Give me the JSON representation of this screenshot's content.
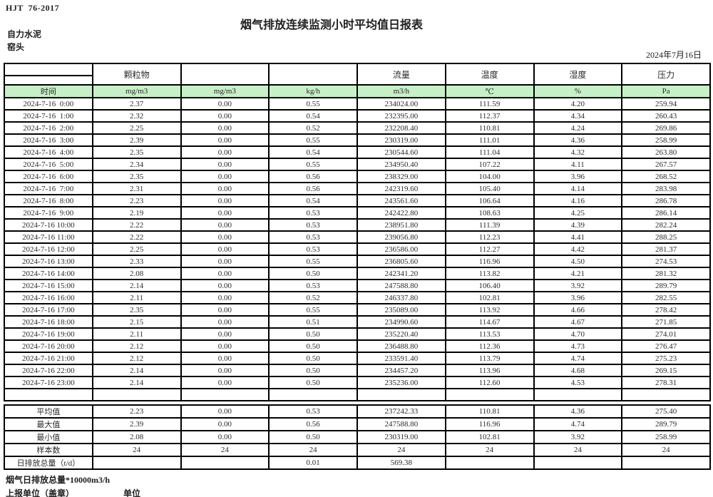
{
  "page": {
    "doc_code": "HJT  76-2017",
    "title": "烟气排放连续监测小时平均值日报表",
    "company": "自力水泥",
    "station": "窑头",
    "date": "2024年7月16日"
  },
  "colors": {
    "header_green": "#c8f0c8",
    "border": "#000000"
  },
  "table": {
    "group_headers": [
      "",
      "颗粒物",
      "",
      "",
      "流量",
      "温度",
      "湿度",
      "压力"
    ],
    "unit_row": [
      "时间",
      "mg/m3",
      "mg/m3",
      "kg/h",
      "m3/h",
      "℃",
      "%",
      "Pa"
    ],
    "rows": [
      [
        "2024-7-16  0:00",
        "2.37",
        "0.00",
        "0.55",
        "234024.00",
        "111.59",
        "4.20",
        "259.94"
      ],
      [
        "2024-7-16  1:00",
        "2.32",
        "0.00",
        "0.54",
        "232395.00",
        "112.37",
        "4.34",
        "260.43"
      ],
      [
        "2024-7-16  2:00",
        "2.25",
        "0.00",
        "0.52",
        "232208.40",
        "110.81",
        "4.24",
        "269.86"
      ],
      [
        "2024-7-16  3:00",
        "2.39",
        "0.00",
        "0.55",
        "230319.00",
        "111.01",
        "4.36",
        "258.99"
      ],
      [
        "2024-7-16  4:00",
        "2.35",
        "0.00",
        "0.54",
        "230544.60",
        "111.04",
        "4.32",
        "263.80"
      ],
      [
        "2024-7-16  5:00",
        "2.34",
        "0.00",
        "0.55",
        "234950.40",
        "107.22",
        "4.11",
        "267.57"
      ],
      [
        "2024-7-16  6:00",
        "2.35",
        "0.00",
        "0.56",
        "238329.00",
        "104.00",
        "3.96",
        "268.52"
      ],
      [
        "2024-7-16  7:00",
        "2.31",
        "0.00",
        "0.56",
        "242319.60",
        "105.40",
        "4.14",
        "283.98"
      ],
      [
        "2024-7-16  8:00",
        "2.23",
        "0.00",
        "0.54",
        "243561.60",
        "106.64",
        "4.16",
        "286.78"
      ],
      [
        "2024-7-16  9:00",
        "2.19",
        "0.00",
        "0.53",
        "242422.80",
        "108.63",
        "4.25",
        "286.14"
      ],
      [
        "2024-7-16 10:00",
        "2.22",
        "0.00",
        "0.53",
        "238951.80",
        "111.39",
        "4.39",
        "282.24"
      ],
      [
        "2024-7-16 11:00",
        "2.22",
        "0.00",
        "0.53",
        "239056.80",
        "112.23",
        "4.41",
        "288.25"
      ],
      [
        "2024-7-16 12:00",
        "2.25",
        "0.00",
        "0.53",
        "236586.00",
        "112.27",
        "4.42",
        "281.37"
      ],
      [
        "2024-7-16 13:00",
        "2.33",
        "0.00",
        "0.55",
        "236805.60",
        "116.96",
        "4.50",
        "274.53"
      ],
      [
        "2024-7-16 14:00",
        "2.08",
        "0.00",
        "0.50",
        "242341.20",
        "113.82",
        "4.21",
        "281.32"
      ],
      [
        "2024-7-16 15:00",
        "2.14",
        "0.00",
        "0.53",
        "247588.80",
        "106.40",
        "3.92",
        "289.79"
      ],
      [
        "2024-7-16 16:00",
        "2.11",
        "0.00",
        "0.52",
        "246337.80",
        "102.81",
        "3.96",
        "282.55"
      ],
      [
        "2024-7-16 17:00",
        "2.35",
        "0.00",
        "0.55",
        "235089.00",
        "113.92",
        "4.66",
        "278.42"
      ],
      [
        "2024-7-16 18:00",
        "2.15",
        "0.00",
        "0.51",
        "234990.60",
        "114.67",
        "4.67",
        "271.85"
      ],
      [
        "2024-7-16 19:00",
        "2.11",
        "0.00",
        "0.50",
        "235220.40",
        "113.53",
        "4.70",
        "274.01"
      ],
      [
        "2024-7-16 20:00",
        "2.12",
        "0.00",
        "0.50",
        "236488.80",
        "112.36",
        "4.73",
        "276.47"
      ],
      [
        "2024-7-16 21:00",
        "2.12",
        "0.00",
        "0.50",
        "233591.40",
        "113.79",
        "4.74",
        "275.23"
      ],
      [
        "2024-7-16 22:00",
        "2.14",
        "0.00",
        "0.50",
        "234457.20",
        "113.96",
        "4.68",
        "269.15"
      ],
      [
        "2024-7-16 23:00",
        "2.14",
        "0.00",
        "0.50",
        "235236.00",
        "112.60",
        "4.53",
        "278.31"
      ]
    ],
    "blank": [
      [
        "",
        "",
        "",
        "",
        "",
        "",
        "",
        ""
      ]
    ],
    "summary": [
      [
        "平均值",
        "2.23",
        "0.00",
        "0.53",
        "237242.33",
        "110.81",
        "4.36",
        "275.40"
      ],
      [
        "最大值",
        "2.39",
        "0.00",
        "0.56",
        "247588.80",
        "116.96",
        "4.74",
        "289.79"
      ],
      [
        "最小值",
        "2.08",
        "0.00",
        "0.50",
        "230319.00",
        "102.81",
        "3.92",
        "258.99"
      ],
      [
        "样本数",
        "24",
        "24",
        "24",
        "24",
        "24",
        "24",
        "24"
      ],
      [
        "日排放总量（t/d）",
        "",
        "",
        "0.01",
        "569.38",
        "",
        "",
        ""
      ]
    ]
  },
  "footer": {
    "note": "烟气日排放总量*10000m3/h",
    "report_unit": "上报单位（盖章）",
    "unit_label": "单位"
  }
}
